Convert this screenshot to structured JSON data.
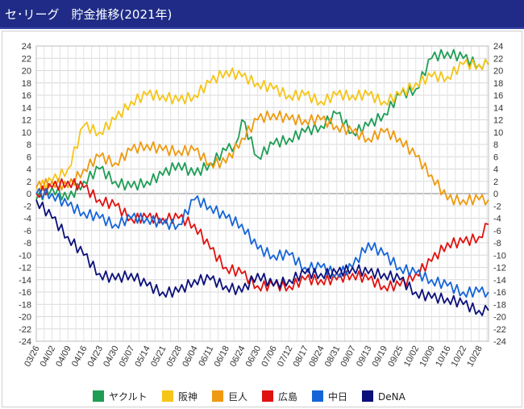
{
  "header": {
    "title": "セ･リーグ　貯金推移(2021年)"
  },
  "colors": {
    "title_bar": "#1f2b86",
    "series": [
      "#1f9d55",
      "#f5c518",
      "#ee9a10",
      "#e0120f",
      "#1565d8",
      "#0b0f7a"
    ]
  },
  "chart_data": {
    "type": "line",
    "title": "セ･リーグ　貯金推移(2021年)",
    "xlabel": "",
    "ylabel": "",
    "x_tick_labels": [
      "03/26",
      "04/02",
      "04/09",
      "04/16",
      "04/23",
      "04/30",
      "05/07",
      "05/14",
      "05/21",
      "05/28",
      "06/04",
      "06/11",
      "06/18",
      "06/24",
      "06/30",
      "07/06",
      "07/12",
      "08/17",
      "08/24",
      "08/31",
      "09/07",
      "09/13",
      "09/19",
      "09/25",
      "10/02",
      "10/09",
      "10/16",
      "10/22",
      "10/28"
    ],
    "x_tick_positions": [
      0,
      5,
      10,
      15,
      20,
      25,
      30,
      35,
      40,
      45,
      50,
      55,
      60,
      65,
      70,
      75,
      80,
      85,
      90,
      95,
      100,
      105,
      110,
      115,
      120,
      125,
      130,
      135,
      140
    ],
    "x_range": [
      0,
      143
    ],
    "y_ticks": [
      24,
      22,
      20,
      18,
      16,
      14,
      12,
      10,
      8,
      6,
      4,
      2,
      0,
      -2,
      -4,
      -6,
      -8,
      -10,
      -12,
      -14,
      -16,
      -18,
      -20,
      -22,
      -24
    ],
    "ylim": [
      -24,
      24
    ],
    "grid": true,
    "legend_position": "bottom",
    "series": [
      {
        "name": "ヤクルト",
        "color": "#1f9d55",
        "points": [
          [
            0,
            -1
          ],
          [
            5,
            1
          ],
          [
            10,
            -1
          ],
          [
            15,
            2
          ],
          [
            20,
            4
          ],
          [
            25,
            2
          ],
          [
            30,
            1
          ],
          [
            35,
            2
          ],
          [
            40,
            3
          ],
          [
            45,
            5
          ],
          [
            50,
            3
          ],
          [
            55,
            5
          ],
          [
            60,
            7
          ],
          [
            63,
            8
          ],
          [
            65,
            12
          ],
          [
            70,
            6
          ],
          [
            75,
            8
          ],
          [
            80,
            9
          ],
          [
            85,
            10
          ],
          [
            90,
            11
          ],
          [
            95,
            13
          ],
          [
            100,
            10
          ],
          [
            105,
            11
          ],
          [
            110,
            13
          ],
          [
            115,
            16
          ],
          [
            120,
            17
          ],
          [
            125,
            22
          ],
          [
            130,
            23
          ],
          [
            135,
            22
          ],
          [
            140,
            21
          ],
          [
            143,
            21
          ]
        ]
      },
      {
        "name": "阪神",
        "color": "#f5c518",
        "points": [
          [
            0,
            1
          ],
          [
            5,
            2
          ],
          [
            10,
            4
          ],
          [
            15,
            11
          ],
          [
            20,
            10
          ],
          [
            25,
            12
          ],
          [
            30,
            15
          ],
          [
            35,
            16
          ],
          [
            40,
            16
          ],
          [
            45,
            15
          ],
          [
            50,
            16
          ],
          [
            55,
            18
          ],
          [
            60,
            20
          ],
          [
            65,
            19
          ],
          [
            70,
            18
          ],
          [
            75,
            17
          ],
          [
            80,
            16
          ],
          [
            85,
            16
          ],
          [
            90,
            15
          ],
          [
            95,
            16
          ],
          [
            100,
            16
          ],
          [
            105,
            16
          ],
          [
            110,
            15
          ],
          [
            115,
            16
          ],
          [
            120,
            18
          ],
          [
            125,
            19
          ],
          [
            130,
            19
          ],
          [
            135,
            21
          ],
          [
            140,
            21
          ],
          [
            143,
            21
          ]
        ]
      },
      {
        "name": "巨人",
        "color": "#ee9a10",
        "points": [
          [
            0,
            1
          ],
          [
            5,
            2
          ],
          [
            10,
            1
          ],
          [
            15,
            4
          ],
          [
            20,
            6
          ],
          [
            25,
            5
          ],
          [
            30,
            7
          ],
          [
            35,
            8
          ],
          [
            40,
            7
          ],
          [
            45,
            7
          ],
          [
            50,
            7
          ],
          [
            55,
            5
          ],
          [
            60,
            5
          ],
          [
            65,
            9
          ],
          [
            70,
            12
          ],
          [
            75,
            13
          ],
          [
            80,
            12
          ],
          [
            85,
            12
          ],
          [
            90,
            12
          ],
          [
            95,
            11
          ],
          [
            100,
            10
          ],
          [
            105,
            9
          ],
          [
            110,
            10
          ],
          [
            115,
            9
          ],
          [
            120,
            6
          ],
          [
            125,
            3
          ],
          [
            130,
            -1
          ],
          [
            135,
            -1
          ],
          [
            140,
            -1
          ],
          [
            143,
            -1
          ]
        ]
      },
      {
        "name": "広島",
        "color": "#e0120f",
        "points": [
          [
            0,
            0
          ],
          [
            5,
            1
          ],
          [
            10,
            2
          ],
          [
            15,
            1
          ],
          [
            20,
            -1
          ],
          [
            25,
            -2
          ],
          [
            30,
            -4
          ],
          [
            35,
            -4
          ],
          [
            40,
            -4
          ],
          [
            45,
            -4
          ],
          [
            50,
            -5
          ],
          [
            55,
            -9
          ],
          [
            60,
            -12
          ],
          [
            65,
            -13
          ],
          [
            70,
            -15
          ],
          [
            75,
            -15
          ],
          [
            80,
            -15
          ],
          [
            85,
            -14
          ],
          [
            90,
            -14
          ],
          [
            95,
            -14
          ],
          [
            100,
            -13
          ],
          [
            105,
            -14
          ],
          [
            110,
            -15
          ],
          [
            115,
            -15
          ],
          [
            120,
            -13
          ],
          [
            125,
            -11
          ],
          [
            130,
            -8
          ],
          [
            135,
            -8
          ],
          [
            140,
            -7
          ],
          [
            143,
            -5
          ]
        ]
      },
      {
        "name": "中日",
        "color": "#1565d8",
        "points": [
          [
            0,
            0
          ],
          [
            5,
            0
          ],
          [
            10,
            -2
          ],
          [
            15,
            -3
          ],
          [
            20,
            -4
          ],
          [
            25,
            -5
          ],
          [
            30,
            -4
          ],
          [
            35,
            -4
          ],
          [
            40,
            -5
          ],
          [
            45,
            -5
          ],
          [
            50,
            -1
          ],
          [
            55,
            -2
          ],
          [
            60,
            -4
          ],
          [
            65,
            -5
          ],
          [
            70,
            -9
          ],
          [
            75,
            -10
          ],
          [
            80,
            -10
          ],
          [
            85,
            -12
          ],
          [
            90,
            -12
          ],
          [
            95,
            -13
          ],
          [
            100,
            -12
          ],
          [
            105,
            -8
          ],
          [
            110,
            -10
          ],
          [
            115,
            -12
          ],
          [
            120,
            -13
          ],
          [
            125,
            -14
          ],
          [
            130,
            -15
          ],
          [
            135,
            -16
          ],
          [
            140,
            -16
          ],
          [
            143,
            -16
          ]
        ]
      },
      {
        "name": "DeNA",
        "color": "#0b0f7a",
        "points": [
          [
            0,
            -1
          ],
          [
            5,
            -4
          ],
          [
            10,
            -7
          ],
          [
            15,
            -10
          ],
          [
            20,
            -13
          ],
          [
            25,
            -14
          ],
          [
            30,
            -13
          ],
          [
            35,
            -15
          ],
          [
            40,
            -16
          ],
          [
            45,
            -16
          ],
          [
            50,
            -14
          ],
          [
            55,
            -14
          ],
          [
            60,
            -15
          ],
          [
            65,
            -16
          ],
          [
            70,
            -13
          ],
          [
            75,
            -15
          ],
          [
            80,
            -14
          ],
          [
            85,
            -13
          ],
          [
            90,
            -13
          ],
          [
            95,
            -13
          ],
          [
            100,
            -12
          ],
          [
            105,
            -13
          ],
          [
            110,
            -13
          ],
          [
            115,
            -14
          ],
          [
            120,
            -16
          ],
          [
            125,
            -17
          ],
          [
            130,
            -17
          ],
          [
            135,
            -18
          ],
          [
            140,
            -19
          ],
          [
            143,
            -19
          ]
        ]
      }
    ]
  }
}
